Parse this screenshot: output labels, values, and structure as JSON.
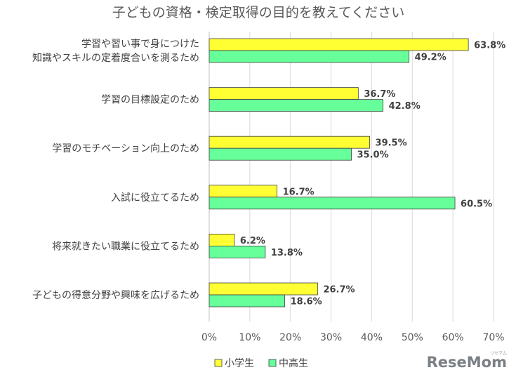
{
  "chart_data": {
    "type": "bar",
    "orientation": "horizontal",
    "title": "子どもの資格・検定取得の目的を教えてください",
    "categories": [
      [
        "学習や習い事で身につけた",
        "知識やスキルの定着度合いを測るため"
      ],
      [
        "学習の目標設定のため"
      ],
      [
        "学習のモチベーション向上のため"
      ],
      [
        "入試に役立てるため"
      ],
      [
        "将来就きたい職業に役立てるため"
      ],
      [
        "子どもの得意分野や興味を広げるため"
      ]
    ],
    "series": [
      {
        "name": "小学生",
        "color": "#ffff33",
        "values": [
          63.8,
          36.7,
          39.5,
          16.7,
          6.2,
          26.7
        ],
        "labels": [
          "63.8%",
          "36.7%",
          "39.5%",
          "16.7%",
          "6.2%",
          "26.7%"
        ]
      },
      {
        "name": "中高生",
        "color": "#66ff99",
        "values": [
          49.2,
          42.8,
          35.0,
          60.5,
          13.8,
          18.6
        ],
        "labels": [
          "49.2%",
          "42.8%",
          "35.0%",
          "60.5%",
          "13.8%",
          "18.6%"
        ]
      }
    ],
    "xlim": [
      0,
      70
    ],
    "ticks": [
      "0%",
      "10%",
      "20%",
      "30%",
      "40%",
      "50%",
      "60%",
      "70%"
    ],
    "grid": true,
    "legend": "bottom"
  },
  "logo": {
    "text": "ReseMom",
    "sub": "リセマム"
  }
}
